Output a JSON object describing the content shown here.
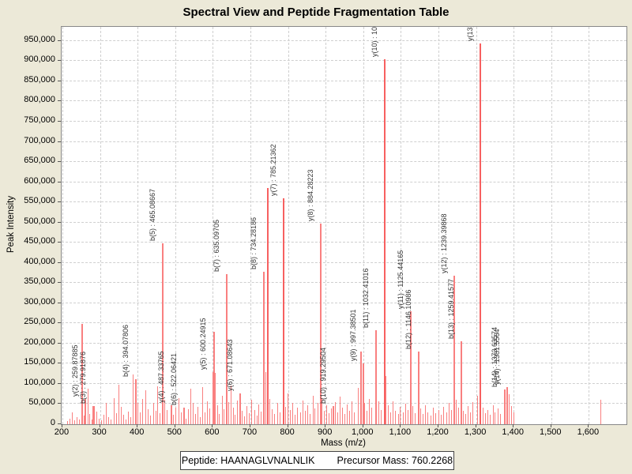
{
  "window": {
    "title": "Spectral View and Peptide Fragmentation Table"
  },
  "chart_data": {
    "type": "bar",
    "subtype": "mass-spectrum-stick-plot",
    "title": "Spectral View and Peptide Fragmentation Table",
    "xlabel": "Mass (m/z)",
    "ylabel": "Peak Intensity",
    "xlim": [
      198,
      1700
    ],
    "ylim": [
      0,
      985000
    ],
    "x_ticks": [
      200,
      300,
      400,
      500,
      600,
      700,
      800,
      900,
      1000,
      1100,
      1200,
      1300,
      1400,
      1500,
      1600
    ],
    "y_ticks": [
      0,
      50000,
      100000,
      150000,
      200000,
      250000,
      300000,
      350000,
      400000,
      450000,
      500000,
      550000,
      600000,
      650000,
      700000,
      750000,
      800000,
      850000,
      900000,
      950000
    ],
    "grid": "dashed",
    "legend": "none",
    "labeled_peaks": [
      {
        "label": "y(2) : 259.87885",
        "mz": 259.88,
        "intensity": 62000
      },
      {
        "label": "b(3) : 279.91876",
        "mz": 279.92,
        "intensity": 45000
      },
      {
        "label": "b(4) : 394.07806",
        "mz": 394.08,
        "intensity": 112000
      },
      {
        "label": "b(5) : 465.08667",
        "mz": 465.09,
        "intensity": 448000
      },
      {
        "label": "y(4) : 487.33765",
        "mz": 487.34,
        "intensity": 48000
      },
      {
        "label": "b(6) : 522.06421",
        "mz": 522.06,
        "intensity": 42000
      },
      {
        "label": "y(5) : 600.24915",
        "mz": 600.25,
        "intensity": 130000
      },
      {
        "label": "b(7) : 635.09705",
        "mz": 635.1,
        "intensity": 372000
      },
      {
        "label": "y(6) : 671.08643",
        "mz": 671.09,
        "intensity": 76000
      },
      {
        "label": "b(8) : 734.28186",
        "mz": 734.28,
        "intensity": 378000
      },
      {
        "label": "y(7) : 785.21362",
        "mz": 785.21,
        "intensity": 560000
      },
      {
        "label": "y(8) : 884.28223",
        "mz": 884.28,
        "intensity": 498000
      },
      {
        "label": "b(10) : 919.29504",
        "mz": 919.3,
        "intensity": 46000
      },
      {
        "label": "y(9) : 997.38501",
        "mz": 997.39,
        "intensity": 150000
      },
      {
        "label": "b(11) : 1032.41016",
        "mz": 1032.41,
        "intensity": 233000
      },
      {
        "label": "y(10) : 10",
        "mz": 1054.7,
        "intensity": 905000
      },
      {
        "label": "y(11) : 1125.44165",
        "mz": 1125.44,
        "intensity": 281000
      },
      {
        "label": "b(12) : 1146.10986",
        "mz": 1146.11,
        "intensity": 181000
      },
      {
        "label": "y(12) : 1239.39868",
        "mz": 1239.4,
        "intensity": 368000
      },
      {
        "label": "b(13) : 1259.41577",
        "mz": 1259.42,
        "intensity": 205000
      },
      {
        "label": "y(13)",
        "mz": 1310.0,
        "intensity": 943000
      },
      {
        "label": "b(14) : 1373.63574",
        "mz": 1373.64,
        "intensity": 86000
      },
      {
        "label": "y(14) : 1381.5564",
        "mz": 1381.56,
        "intensity": 93000
      }
    ],
    "noise_peaks": [
      [
        213,
        7000
      ],
      [
        219,
        14000
      ],
      [
        226,
        30000
      ],
      [
        231,
        9000
      ],
      [
        238,
        18000
      ],
      [
        244,
        12000
      ],
      [
        250,
        248000
      ],
      [
        252,
        36000
      ],
      [
        256,
        22000
      ],
      [
        262,
        14000
      ],
      [
        268,
        88000
      ],
      [
        272,
        26000
      ],
      [
        277,
        12000
      ],
      [
        284,
        46000
      ],
      [
        290,
        31000
      ],
      [
        296,
        14000
      ],
      [
        303,
        9000
      ],
      [
        310,
        24000
      ],
      [
        316,
        52000
      ],
      [
        322,
        18000
      ],
      [
        329,
        11000
      ],
      [
        336,
        64000
      ],
      [
        342,
        27000
      ],
      [
        349,
        98000
      ],
      [
        356,
        44000
      ],
      [
        362,
        23000
      ],
      [
        368,
        12000
      ],
      [
        375,
        31000
      ],
      [
        381,
        17000
      ],
      [
        388,
        123000
      ],
      [
        399,
        52000
      ],
      [
        406,
        29000
      ],
      [
        413,
        62000
      ],
      [
        420,
        84000
      ],
      [
        427,
        38000
      ],
      [
        434,
        21000
      ],
      [
        441,
        52000
      ],
      [
        447,
        33000
      ],
      [
        453,
        95000
      ],
      [
        459,
        27000
      ],
      [
        472,
        60000
      ],
      [
        478,
        35000
      ],
      [
        494,
        24000
      ],
      [
        500,
        41000
      ],
      [
        508,
        65000
      ],
      [
        515,
        29000
      ],
      [
        528,
        13000
      ],
      [
        534,
        38000
      ],
      [
        541,
        88000
      ],
      [
        547,
        52000
      ],
      [
        554,
        26000
      ],
      [
        560,
        44000
      ],
      [
        566,
        17000
      ],
      [
        572,
        92000
      ],
      [
        578,
        30000
      ],
      [
        585,
        57000
      ],
      [
        590,
        40000
      ],
      [
        602,
        230000
      ],
      [
        605,
        128000
      ],
      [
        611,
        48000
      ],
      [
        617,
        26000
      ],
      [
        624,
        70000
      ],
      [
        629,
        38000
      ],
      [
        641,
        55000
      ],
      [
        647,
        96000
      ],
      [
        653,
        41000
      ],
      [
        659,
        24000
      ],
      [
        665,
        58000
      ],
      [
        677,
        33000
      ],
      [
        683,
        19000
      ],
      [
        690,
        46000
      ],
      [
        696,
        28000
      ],
      [
        703,
        61000
      ],
      [
        710,
        36000
      ],
      [
        716,
        22000
      ],
      [
        722,
        49000
      ],
      [
        728,
        31000
      ],
      [
        740,
        130000
      ],
      [
        745,
        585000
      ],
      [
        750,
        62000
      ],
      [
        757,
        38000
      ],
      [
        764,
        26000
      ],
      [
        771,
        52000
      ],
      [
        777,
        30000
      ],
      [
        792,
        44000
      ],
      [
        798,
        76000
      ],
      [
        805,
        35000
      ],
      [
        812,
        52000
      ],
      [
        818,
        24000
      ],
      [
        825,
        41000
      ],
      [
        832,
        29000
      ],
      [
        838,
        58000
      ],
      [
        845,
        33000
      ],
      [
        852,
        47000
      ],
      [
        858,
        26000
      ],
      [
        865,
        71000
      ],
      [
        871,
        39000
      ],
      [
        878,
        52000
      ],
      [
        890,
        64000
      ],
      [
        896,
        33000
      ],
      [
        902,
        47000
      ],
      [
        908,
        28000
      ],
      [
        914,
        39000
      ],
      [
        925,
        55000
      ],
      [
        931,
        30000
      ],
      [
        938,
        68000
      ],
      [
        944,
        41000
      ],
      [
        950,
        26000
      ],
      [
        957,
        49000
      ],
      [
        963,
        33000
      ],
      [
        970,
        57000
      ],
      [
        976,
        29000
      ],
      [
        985,
        90000
      ],
      [
        992,
        180000
      ],
      [
        1003,
        52000
      ],
      [
        1009,
        34000
      ],
      [
        1016,
        62000
      ],
      [
        1022,
        41000
      ],
      [
        1040,
        57000
      ],
      [
        1047,
        35000
      ],
      [
        1060,
        120000
      ],
      [
        1066,
        48000
      ],
      [
        1072,
        30000
      ],
      [
        1079,
        56000
      ],
      [
        1085,
        33000
      ],
      [
        1092,
        25000
      ],
      [
        1098,
        44000
      ],
      [
        1105,
        29000
      ],
      [
        1112,
        50000
      ],
      [
        1118,
        35000
      ],
      [
        1131,
        46000
      ],
      [
        1137,
        28000
      ],
      [
        1152,
        39000
      ],
      [
        1158,
        25000
      ],
      [
        1165,
        47000
      ],
      [
        1171,
        30000
      ],
      [
        1178,
        22000
      ],
      [
        1185,
        41000
      ],
      [
        1192,
        27000
      ],
      [
        1199,
        35000
      ],
      [
        1206,
        23000
      ],
      [
        1213,
        44000
      ],
      [
        1220,
        30000
      ],
      [
        1227,
        52000
      ],
      [
        1233,
        36000
      ],
      [
        1246,
        60000
      ],
      [
        1252,
        41000
      ],
      [
        1265,
        33000
      ],
      [
        1271,
        25000
      ],
      [
        1278,
        46000
      ],
      [
        1284,
        30000
      ],
      [
        1291,
        55000
      ],
      [
        1304,
        70000
      ],
      [
        1317,
        42000
      ],
      [
        1323,
        28000
      ],
      [
        1330,
        36000
      ],
      [
        1337,
        24000
      ],
      [
        1344,
        48000
      ],
      [
        1350,
        30000
      ],
      [
        1357,
        40000
      ],
      [
        1364,
        26000
      ],
      [
        1377,
        62000
      ],
      [
        1387,
        74000
      ],
      [
        1393,
        46000
      ],
      [
        1399,
        30000
      ],
      [
        1631,
        60000
      ]
    ]
  },
  "footer": {
    "peptide_label": "Peptide: HAANAGLVNALNLIK",
    "precursor_label": "Precursor Mass: 760.2268"
  },
  "colors": {
    "background": "#ece9d8",
    "plot_background": "#ffffff",
    "grid": "#cfcfcf",
    "peak": "#f98080",
    "peak_strong": "#f76060",
    "border": "#888888",
    "label_text": "#333333"
  }
}
